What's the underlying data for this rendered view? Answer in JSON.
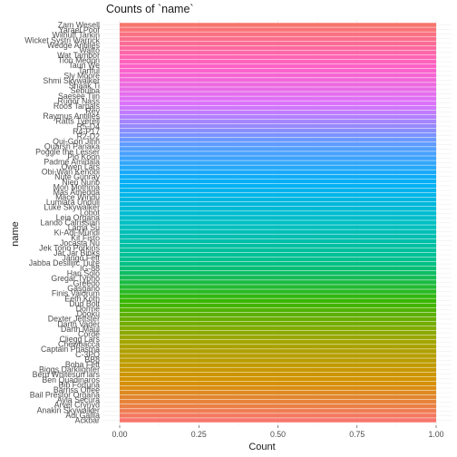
{
  "chart_data": {
    "type": "bar",
    "orientation": "horizontal",
    "title": "Counts of `name`",
    "xlabel": "Count",
    "ylabel": "name",
    "xlim": [
      0,
      1
    ],
    "x_ticks": [
      "0.00",
      "0.25",
      "0.50",
      "0.75",
      "1.00"
    ],
    "x_tick_values": [
      0,
      0.25,
      0.5,
      0.75,
      1.0
    ],
    "grid": true,
    "legend": "none",
    "visible_category_labels_top_to_bottom": [
      "Zam Wesell",
      "Yarael Poof",
      "Wilhuff Tarkin",
      "Wicket Systri Warrick",
      "Wedge Antilles",
      "Watto",
      "Wat Tambor",
      "Tion Medon",
      "Taun We",
      "Tarfful",
      "Sly Moore",
      "Shmi Skywalker",
      "Shaak Ti",
      "Sebulba",
      "Saesee Tiin",
      "Rugor Nass",
      "Roos Tarpals",
      "Rey",
      "Raymus Antilles",
      "Ratts Tyerell",
      "R5-D4",
      "R4-P17",
      "R2-D2",
      "Qui-Gon Jinn",
      "Quarsh Panaka",
      "Poggle the Lesser",
      "Plo Koon",
      "Padmé Amidala",
      "Owen Lars",
      "Obi-Wan Kenobi",
      "Nute Gunray",
      "Nien Nunb",
      "Mon Mothma",
      "Mas Amedda",
      "Mace Windu",
      "Lumiara Unduli",
      "Luke Skywalker",
      "Lobot",
      "Leia Organa",
      "Lando Calrissian",
      "Lama Su",
      "Ki-Adi-Mundi",
      "Kit Fisto",
      "Jocasta Nu",
      "Jek Tono Porkins",
      "Jar Jar Binks",
      "Jango Fett",
      "Jabba Desilijic Tiure",
      "IG-88",
      "Han Solo",
      "Gregar Typho",
      "Greedo",
      "Gasgano",
      "Finis Valorum",
      "Eeth Koth",
      "Dud Bolt",
      "Dormé",
      "Dooku",
      "Dexter Jettster",
      "Darth Vader",
      "Darth Maul",
      "Cordé",
      "Cliegg Lars",
      "Chewbacca",
      "Captain Phasma",
      "C-3PO",
      "BB8",
      "Boba Fett",
      "Biggs Darklighter",
      "Beru Whitesun lars",
      "Ben Quadinaros",
      "Bib Fortuna",
      "Barriss Offee",
      "Bail Prestor Organa",
      "Ayla Secura",
      "Arvel Crynyd",
      "Anakin Skywalker",
      "Adi Gallia",
      "Ackbar"
    ],
    "bar_count": 87,
    "all_values": 1,
    "bar_colors_top_to_bottom": [
      "#F8766D",
      "#FF61C3",
      "#DB72FB",
      "#619CFF",
      "#00B0F6",
      "#00BFC4",
      "#00C08B",
      "#39B600",
      "#A3A500",
      "#D39200",
      "#F8766D"
    ]
  }
}
